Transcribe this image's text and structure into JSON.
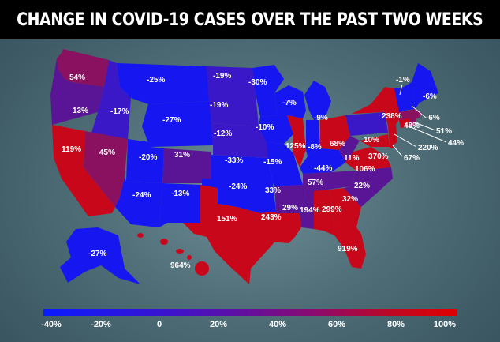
{
  "title": "CHANGE IN COVID-19 CASES OVER THE PAST TWO WEEKS",
  "colors": {
    "blue": "#1616f0",
    "blue_purple": "#3a18c8",
    "purple": "#5a1496",
    "magenta": "#8a1060",
    "red": "#c8081a",
    "bright_red": "#de0410"
  },
  "states": [
    {
      "id": "wa",
      "value": "54%"
    },
    {
      "id": "or",
      "value": "13%"
    },
    {
      "id": "id",
      "value": "-17%"
    },
    {
      "id": "mt",
      "value": "-25%"
    },
    {
      "id": "nd",
      "value": "-19%"
    },
    {
      "id": "mn",
      "value": "-30%"
    },
    {
      "id": "sd",
      "value": "-19%"
    },
    {
      "id": "wy",
      "value": "-27%"
    },
    {
      "id": "ne",
      "value": "-12%"
    },
    {
      "id": "ca",
      "value": "119%"
    },
    {
      "id": "nv",
      "value": "45%"
    },
    {
      "id": "ut",
      "value": "-20%"
    },
    {
      "id": "co",
      "value": "31%"
    },
    {
      "id": "ks",
      "value": "-33%"
    },
    {
      "id": "az",
      "value": "-24%"
    },
    {
      "id": "nm",
      "value": "-13%"
    },
    {
      "id": "ok",
      "value": "-24%"
    },
    {
      "id": "tx",
      "value": "151%"
    },
    {
      "id": "ia",
      "value": "-10%"
    },
    {
      "id": "wi",
      "value": "-7%"
    },
    {
      "id": "mi",
      "value": "-9%"
    },
    {
      "id": "il",
      "value": "125%"
    },
    {
      "id": "in",
      "value": "-8%"
    },
    {
      "id": "oh",
      "value": "68%"
    },
    {
      "id": "mo",
      "value": "-15%"
    },
    {
      "id": "ky",
      "value": "-44%"
    },
    {
      "id": "ar",
      "value": "33%"
    },
    {
      "id": "tn",
      "value": "57%"
    },
    {
      "id": "la",
      "value": "243%"
    },
    {
      "id": "ms",
      "value": "29%"
    },
    {
      "id": "al",
      "value": "194%"
    },
    {
      "id": "ga",
      "value": "299%"
    },
    {
      "id": "sc",
      "value": "32%"
    },
    {
      "id": "nc",
      "value": "22%"
    },
    {
      "id": "va",
      "value": "106%"
    },
    {
      "id": "wv",
      "value": "11%"
    },
    {
      "id": "pa",
      "value": "10%"
    },
    {
      "id": "ny",
      "value": "238%"
    },
    {
      "id": "fl",
      "value": "919%"
    },
    {
      "id": "vt",
      "value": "-1%"
    },
    {
      "id": "me",
      "value": "-6%"
    },
    {
      "id": "nh",
      "value": "-6%"
    },
    {
      "id": "ma",
      "value": "48%"
    },
    {
      "id": "ri",
      "value": "51%"
    },
    {
      "id": "ct",
      "value": "44%"
    },
    {
      "id": "nj",
      "value": "220%"
    },
    {
      "id": "md",
      "value": "370%"
    },
    {
      "id": "de",
      "value": "67%"
    },
    {
      "id": "ak",
      "value": "-27%"
    },
    {
      "id": "hi",
      "value": "964%"
    }
  ],
  "legend": [
    "-40%",
    "-20%",
    "0",
    "20%",
    "40%",
    "60%",
    "80%",
    "100%"
  ]
}
